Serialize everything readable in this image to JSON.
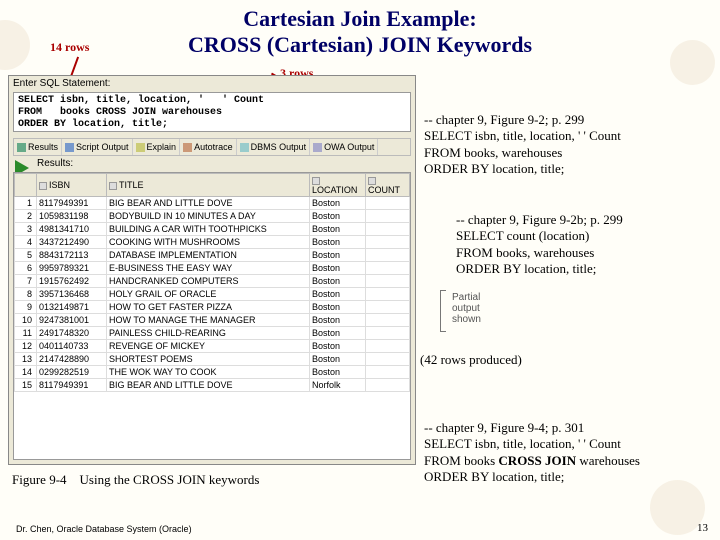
{
  "title": {
    "l1": "Cartesian Join Example:",
    "l2": "CROSS (Cartesian) JOIN Keywords"
  },
  "annot": {
    "left": "14 rows",
    "right": "3 rows"
  },
  "shot": {
    "enter": "Enter SQL Statement:",
    "sql": "SELECT isbn, title, location, '   ' Count\nFROM   books CROSS JOIN warehouses\nORDER BY location, title;",
    "tabs": {
      "results": "Results",
      "script": "Script Output",
      "explain": "Explain",
      "autotrace": "Autotrace",
      "dbms": "DBMS Output",
      "owa": "OWA Output"
    },
    "resultsLabel": "Results:",
    "cols": {
      "n": "",
      "isbn": "ISBN",
      "title": "TITLE",
      "loc": "LOCATION",
      "count": "COUNT"
    },
    "rows": [
      [
        "1",
        "8117949391",
        "BIG BEAR AND LITTLE DOVE",
        "Boston",
        ""
      ],
      [
        "2",
        "1059831198",
        "BODYBUILD IN 10 MINUTES A DAY",
        "Boston",
        ""
      ],
      [
        "3",
        "4981341710",
        "BUILDING A CAR WITH TOOTHPICKS",
        "Boston",
        ""
      ],
      [
        "4",
        "3437212490",
        "COOKING WITH MUSHROOMS",
        "Boston",
        ""
      ],
      [
        "5",
        "8843172113",
        "DATABASE IMPLEMENTATION",
        "Boston",
        ""
      ],
      [
        "6",
        "9959789321",
        "E-BUSINESS THE EASY WAY",
        "Boston",
        ""
      ],
      [
        "7",
        "1915762492",
        "HANDCRANKED COMPUTERS",
        "Boston",
        ""
      ],
      [
        "8",
        "3957136468",
        "HOLY GRAIL OF ORACLE",
        "Boston",
        ""
      ],
      [
        "9",
        "0132149871",
        "HOW TO GET FASTER PIZZA",
        "Boston",
        ""
      ],
      [
        "10",
        "9247381001",
        "HOW TO MANAGE THE MANAGER",
        "Boston",
        ""
      ],
      [
        "11",
        "2491748320",
        "PAINLESS CHILD-REARING",
        "Boston",
        ""
      ],
      [
        "12",
        "0401140733",
        "REVENGE OF MICKEY",
        "Boston",
        ""
      ],
      [
        "13",
        "2147428890",
        "SHORTEST POEMS",
        "Boston",
        ""
      ],
      [
        "14",
        "0299282519",
        "THE WOK WAY TO COOK",
        "Boston",
        ""
      ],
      [
        "15",
        "8117949391",
        "BIG BEAR AND LITTLE DOVE",
        "Norfolk",
        ""
      ]
    ]
  },
  "code1": {
    "a": "-- chapter 9, Figure 9-2; p. 299",
    "b": "SELECT isbn, title, location, '     ' Count",
    "c": "FROM books, warehouses",
    "d": "ORDER BY location, title;"
  },
  "code2": {
    "a": "-- chapter 9, Figure 9-2b; p. 299",
    "b": "SELECT count (location)",
    "c": "FROM books, warehouses",
    "d": "ORDER BY location, title;"
  },
  "partial": {
    "a": "Partial",
    "b": "output",
    "c": "shown"
  },
  "produced": "(42 rows produced)",
  "code3": {
    "a": "-- chapter 9, Figure 9-4; p. 301",
    "b": "SELECT isbn, title, location, '    ' Count",
    "c1": "FROM books ",
    "c2": "CROSS JOIN",
    "c3": " warehouses",
    "d": "ORDER BY location, title;"
  },
  "caption": {
    "fig": "Figure 9-4",
    "txt": "Using the CROSS JOIN keywords"
  },
  "footer": "Dr. Chen, Oracle Database System (Oracle)",
  "page": "13",
  "colors": {
    "titleColor": "#000066",
    "annotColor": "#aa0000"
  }
}
